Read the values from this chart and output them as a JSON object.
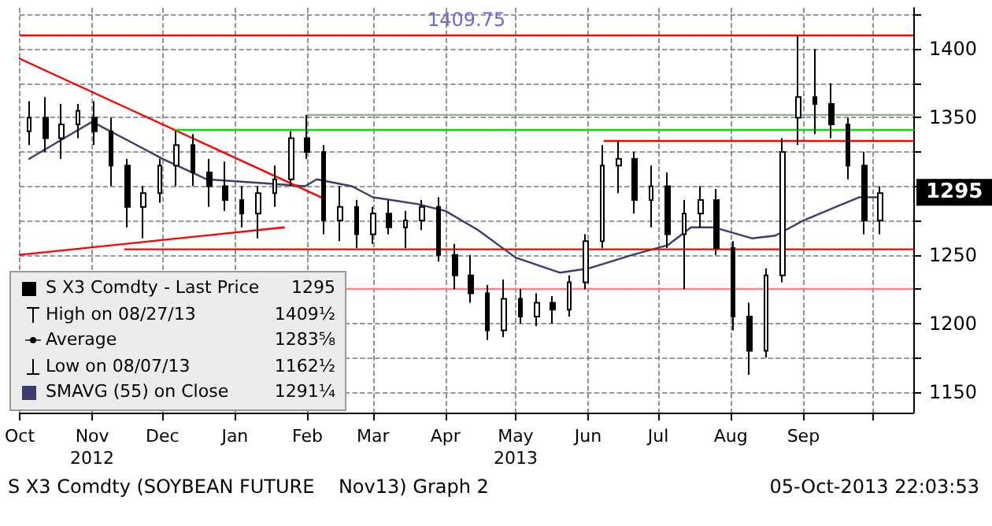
{
  "chart_data": {
    "type": "candlestick",
    "xlim": [
      "2012-10-01",
      "2013-10-18"
    ],
    "xticks": [
      {
        "value": "2012-10-01",
        "label": "Oct"
      },
      {
        "value": "2012-11-01",
        "label": "Nov\n2012"
      },
      {
        "value": "2012-12-01",
        "label": "Dec"
      },
      {
        "value": "2013-01-01",
        "label": "Jan"
      },
      {
        "value": "2013-02-01",
        "label": "Feb"
      },
      {
        "value": "2013-03-01",
        "label": "Mar"
      },
      {
        "value": "2013-04-01",
        "label": "Apr"
      },
      {
        "value": "2013-05-01",
        "label": "May\n2013"
      },
      {
        "value": "2013-06-01",
        "label": "Jun"
      },
      {
        "value": "2013-07-01",
        "label": "Jul"
      },
      {
        "value": "2013-08-01",
        "label": "Aug"
      },
      {
        "value": "2013-09-01",
        "label": "Sep"
      },
      {
        "value": "2013-10-01",
        "label": null
      }
    ],
    "ylim": [
      1135,
      1430
    ],
    "yticks": [
      1150,
      {
        "value": 1175,
        "label": null
      },
      1200,
      {
        "value": 1225,
        "label": null
      },
      1250,
      {
        "value": 1275,
        "label": null
      },
      1300,
      {
        "value": 1325,
        "label": null
      },
      1350,
      {
        "value": 1375,
        "label": null
      },
      1400,
      {
        "value": 1425,
        "label": null
      }
    ],
    "grid": true,
    "legend": "bottom left",
    "marker": "none",
    "line_style": "solid",
    "series": [
      {
        "name": "S X3 Comdty - Last Price",
        "color": "#000000",
        "x": [
          "2012-10-05",
          "2012-10-12",
          "2012-10-19",
          "2012-10-26",
          "2012-11-02",
          "2012-11-09",
          "2012-11-16",
          "2012-11-23",
          "2012-11-30",
          "2012-12-07",
          "2012-12-14",
          "2012-12-21",
          "2012-12-28",
          "2013-01-04",
          "2013-01-11",
          "2013-01-18",
          "2013-01-25",
          "2013-02-01",
          "2013-02-08",
          "2013-02-15",
          "2013-02-22",
          "2013-03-01",
          "2013-03-08",
          "2013-03-15",
          "2013-03-22",
          "2013-03-29",
          "2013-04-05",
          "2013-04-12",
          "2013-04-19",
          "2013-04-26",
          "2013-05-03",
          "2013-05-10",
          "2013-05-17",
          "2013-05-24",
          "2013-05-31",
          "2013-06-07",
          "2013-06-14",
          "2013-06-21",
          "2013-06-28",
          "2013-07-05",
          "2013-07-12",
          "2013-07-19",
          "2013-07-26",
          "2013-08-02",
          "2013-08-09",
          "2013-08-16",
          "2013-08-23",
          "2013-08-30",
          "2013-09-06",
          "2013-09-13",
          "2013-09-20",
          "2013-09-27",
          "2013-10-04"
        ],
        "ohlc": [
          [
            1340,
            1362,
            1330,
            1350
          ],
          [
            1350,
            1365,
            1325,
            1335
          ],
          [
            1335,
            1360,
            1320,
            1345
          ],
          [
            1345,
            1360,
            1335,
            1355
          ],
          [
            1350,
            1362,
            1330,
            1340
          ],
          [
            1340,
            1350,
            1300,
            1315
          ],
          [
            1315,
            1320,
            1270,
            1285
          ],
          [
            1285,
            1300,
            1262,
            1295
          ],
          [
            1295,
            1320,
            1288,
            1315
          ],
          [
            1315,
            1340,
            1300,
            1330
          ],
          [
            1330,
            1338,
            1300,
            1310
          ],
          [
            1310,
            1320,
            1285,
            1300
          ],
          [
            1300,
            1318,
            1282,
            1290
          ],
          [
            1290,
            1300,
            1270,
            1280
          ],
          [
            1280,
            1300,
            1262,
            1295
          ],
          [
            1295,
            1315,
            1285,
            1305
          ],
          [
            1305,
            1340,
            1300,
            1335
          ],
          [
            1335,
            1352,
            1320,
            1325
          ],
          [
            1325,
            1330,
            1265,
            1275
          ],
          [
            1275,
            1300,
            1260,
            1285
          ],
          [
            1285,
            1290,
            1255,
            1265
          ],
          [
            1265,
            1285,
            1258,
            1280
          ],
          [
            1280,
            1290,
            1265,
            1270
          ],
          [
            1270,
            1282,
            1255,
            1275
          ],
          [
            1275,
            1290,
            1268,
            1285
          ],
          [
            1285,
            1292,
            1245,
            1250
          ],
          [
            1250,
            1258,
            1225,
            1235
          ],
          [
            1235,
            1250,
            1215,
            1222
          ],
          [
            1222,
            1228,
            1188,
            1195
          ],
          [
            1195,
            1232,
            1190,
            1218
          ],
          [
            1218,
            1225,
            1200,
            1205
          ],
          [
            1205,
            1222,
            1198,
            1215
          ],
          [
            1215,
            1220,
            1200,
            1210
          ],
          [
            1210,
            1235,
            1205,
            1230
          ],
          [
            1230,
            1265,
            1225,
            1260
          ],
          [
            1260,
            1330,
            1255,
            1315
          ],
          [
            1315,
            1333,
            1295,
            1320
          ],
          [
            1320,
            1325,
            1280,
            1290
          ],
          [
            1290,
            1315,
            1270,
            1300
          ],
          [
            1300,
            1310,
            1255,
            1265
          ],
          [
            1265,
            1290,
            1225,
            1280
          ],
          [
            1280,
            1300,
            1270,
            1290
          ],
          [
            1290,
            1298,
            1250,
            1255
          ],
          [
            1255,
            1260,
            1195,
            1205
          ],
          [
            1205,
            1215,
            1162.5,
            1180
          ],
          [
            1180,
            1240,
            1175,
            1235
          ],
          [
            1235,
            1335,
            1230,
            1325
          ],
          [
            1350,
            1409.5,
            1330,
            1365
          ],
          [
            1365,
            1400,
            1338,
            1360
          ],
          [
            1360,
            1375,
            1335,
            1345
          ],
          [
            1345,
            1350,
            1305,
            1315
          ],
          [
            1315,
            1325,
            1265,
            1275
          ],
          [
            1275,
            1300,
            1265,
            1295
          ]
        ]
      },
      {
        "type": "line",
        "name": "SMAVG (55) on Close",
        "color": "#3c3c6e",
        "x": [
          "2012-10-05",
          "2012-10-25",
          "2012-11-01",
          "2012-11-20",
          "2012-12-01",
          "2012-12-20",
          "2013-01-15",
          "2013-01-31",
          "2013-02-05",
          "2013-02-20",
          "2013-03-01",
          "2013-03-20",
          "2013-04-01",
          "2013-04-15",
          "2013-05-01",
          "2013-05-20",
          "2013-06-01",
          "2013-06-20",
          "2013-07-05",
          "2013-07-15",
          "2013-07-25",
          "2013-08-10",
          "2013-08-20",
          "2013-09-01",
          "2013-09-15",
          "2013-09-25",
          "2013-10-04"
        ],
        "values": [
          1320,
          1340,
          1347,
          1330,
          1320,
          1305,
          1302,
          1300,
          1305,
          1300,
          1292,
          1287,
          1282,
          1268,
          1248,
          1237,
          1240,
          1250,
          1257,
          1270,
          1270,
          1262,
          1264,
          1275,
          1285,
          1292,
          1292
        ]
      },
      {
        "type": "line",
        "color": "#ff0000",
        "x": [
          "2012-10-01",
          "2013-02-08"
        ],
        "values": [
          1393,
          1291
        ]
      },
      {
        "type": "line",
        "color": "#ff0000",
        "x": [
          "2012-10-01",
          "2013-01-22"
        ],
        "values": [
          1250,
          1270
        ]
      },
      {
        "type": "line",
        "color": "#00e000",
        "x": [
          "2012-12-07",
          "2013-10-18"
        ],
        "values": [
          1341,
          1341
        ]
      },
      {
        "type": "line",
        "color": "#8fb08f",
        "x": [
          "2013-02-01",
          "2013-10-18"
        ],
        "values": [
          1352,
          1352
        ]
      },
      {
        "type": "line",
        "color": "#ff0000",
        "x": [
          "2013-06-08",
          "2013-10-18"
        ],
        "values": [
          1333,
          1333
        ]
      },
      {
        "type": "line",
        "color": "#ff0000",
        "x": [
          "2012-11-15",
          "2013-10-18"
        ],
        "values": [
          1254,
          1254
        ]
      }
    ],
    "ref_lines": [
      {
        "axis": "y",
        "value": 1409.75,
        "label": "1409.75",
        "color": "#ff0000"
      },
      {
        "axis": "y",
        "value": 1225,
        "label": null,
        "color": "#ff8080"
      }
    ],
    "annotations": [
      {
        "text": "1295",
        "x": "2013-10-04",
        "y": 1295
      },
      "1295",
      "High on 08/27/13",
      "1409½",
      "Average",
      "1283⅝",
      "Low on 08/07/13",
      "1162½",
      "1291¼",
      "S X3 Comdty (SOYBEAN FUTURE    Nov13) Graph 2",
      "05-Oct-2013 22:03:53"
    ]
  }
}
